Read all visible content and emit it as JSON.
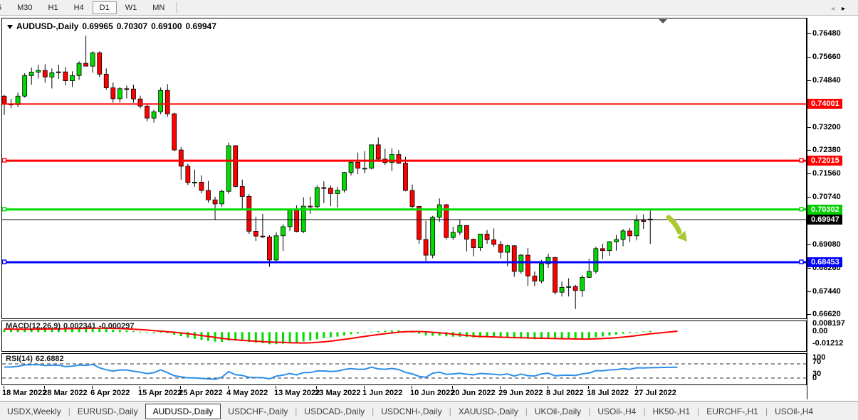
{
  "toolbar": {
    "buttons": [
      "5",
      "M30",
      "H1",
      "H4",
      "D1",
      "W1",
      "MN"
    ],
    "active": "D1"
  },
  "chart": {
    "symbol_period": "AUDUSD-,Daily",
    "open": "0.69965",
    "high": "0.70307",
    "low": "0.69100",
    "close": "0.69947"
  },
  "indicators": {
    "macd": {
      "label": "MACD(12,26,9)",
      "value_main": "0.002341",
      "value_signal": "-0.000297",
      "axis": [
        "0.008197",
        "0.00",
        "-0.01212"
      ]
    },
    "rsi": {
      "label": "RSI(14)",
      "value": "62.6882",
      "axis": [
        "100",
        "70",
        "30",
        "0"
      ]
    }
  },
  "price_axis": {
    "ticks": [
      "0.76480",
      "0.75660",
      "0.74840",
      "0.73200",
      "0.72380",
      "0.71560",
      "0.70740",
      "0.69080",
      "0.68260",
      "0.67440",
      "0.66620"
    ],
    "badges": [
      {
        "text": "0.74001",
        "bg": "#FF0000"
      },
      {
        "text": "0.72015",
        "bg": "#FF0000"
      },
      {
        "text": "0.70302",
        "bg": "#00CE00"
      },
      {
        "text": "0.69947",
        "bg": "#000000"
      },
      {
        "text": "0.68453",
        "bg": "#0000FF"
      }
    ]
  },
  "annotations": {
    "trend_arrow": {
      "direction": "down-right",
      "color": "#A9C832"
    }
  },
  "tabs": {
    "items": [
      {
        "label": "USDX,Weekly",
        "active": false
      },
      {
        "label": "EURUSD-,Daily",
        "active": false
      },
      {
        "label": "AUDUSD-,Daily",
        "active": true
      },
      {
        "label": "USDCHF-,Daily",
        "active": false
      },
      {
        "label": "USDCAD-,Daily",
        "active": false
      },
      {
        "label": "USDCNH-,Daily",
        "active": false
      },
      {
        "label": "XAUUSD-,Daily",
        "active": false
      },
      {
        "label": "UKOil-,Daily",
        "active": false
      },
      {
        "label": "USOil-,H4",
        "active": false
      },
      {
        "label": "HK50-,H1",
        "active": false
      },
      {
        "label": "EURCHF-,H1",
        "active": false
      },
      {
        "label": "USOil-,H4",
        "active": false
      }
    ],
    "scroll_left_icon": "◂",
    "scroll_right_icon": "▸"
  },
  "chart_data": {
    "type": "candlestick",
    "symbol": "AUDUSD-",
    "timeframe": "Daily",
    "ylim": [
      0.6662,
      0.7703
    ],
    "current_price": 0.69947,
    "horizontal_lines": [
      {
        "price": 0.74001,
        "color": "#FF0000",
        "width": 2,
        "end_markers": false
      },
      {
        "price": 0.72015,
        "color": "#FF0000",
        "width": 3,
        "end_markers": true
      },
      {
        "price": 0.70302,
        "color": "#00DC00",
        "width": 3,
        "end_markers": true
      },
      {
        "price": 0.68453,
        "color": "#0000FF",
        "width": 3,
        "end_markers": true
      }
    ],
    "date_labels": [
      {
        "label": "18 Mar 2022",
        "i": 0
      },
      {
        "label": "28 Mar 2022",
        "i": 6
      },
      {
        "label": "6 Apr 2022",
        "i": 13
      },
      {
        "label": "15 Apr 2022",
        "i": 20
      },
      {
        "label": "25 Apr 2022",
        "i": 26
      },
      {
        "label": "4 May 2022",
        "i": 33
      },
      {
        "label": "13 May 2022",
        "i": 40
      },
      {
        "label": "23 May 2022",
        "i": 46
      },
      {
        "label": "1 Jun 2022",
        "i": 53
      },
      {
        "label": "10 Jun 2022",
        "i": 60
      },
      {
        "label": "20 Jun 2022",
        "i": 66
      },
      {
        "label": "29 Jun 2022",
        "i": 73
      },
      {
        "label": "8 Jul 2022",
        "i": 80
      },
      {
        "label": "18 Jul 2022",
        "i": 86
      },
      {
        "label": "27 Jul 2022",
        "i": 93
      }
    ],
    "indicator_summary": [
      {
        "type": "MACD",
        "params": [
          12,
          26,
          9
        ],
        "last_main": 0.002341,
        "last_signal": -0.000297
      },
      {
        "type": "RSI",
        "params": [
          14
        ],
        "last": 62.6882,
        "levels": [
          70,
          30
        ]
      }
    ],
    "candles": [
      [
        0.7428,
        0.7432,
        0.7362,
        0.74
      ],
      [
        0.74,
        0.7418,
        0.7385,
        0.7398
      ],
      [
        0.7398,
        0.744,
        0.739,
        0.7428
      ],
      [
        0.7428,
        0.7508,
        0.7423,
        0.75
      ],
      [
        0.75,
        0.7528,
        0.7468,
        0.7512
      ],
      [
        0.7512,
        0.7537,
        0.749,
        0.7518
      ],
      [
        0.7518,
        0.754,
        0.7475,
        0.7495
      ],
      [
        0.7495,
        0.7525,
        0.7455,
        0.751
      ],
      [
        0.751,
        0.7538,
        0.7488,
        0.7513
      ],
      [
        0.7513,
        0.753,
        0.7465,
        0.7482
      ],
      [
        0.7482,
        0.7515,
        0.746,
        0.75
      ],
      [
        0.75,
        0.755,
        0.7485,
        0.7543
      ],
      [
        0.7543,
        0.764,
        0.7535,
        0.7533
      ],
      [
        0.7533,
        0.7585,
        0.751,
        0.758
      ],
      [
        0.758,
        0.7585,
        0.7495,
        0.7505
      ],
      [
        0.7505,
        0.7525,
        0.745,
        0.7457
      ],
      [
        0.7457,
        0.7475,
        0.7405,
        0.7419
      ],
      [
        0.7419,
        0.746,
        0.7405,
        0.7454
      ],
      [
        0.7454,
        0.7465,
        0.742,
        0.7453
      ],
      [
        0.7453,
        0.7468,
        0.7405,
        0.7418
      ],
      [
        0.7418,
        0.743,
        0.7385,
        0.7393
      ],
      [
        0.7393,
        0.74,
        0.734,
        0.7351
      ],
      [
        0.7351,
        0.738,
        0.7335,
        0.7373
      ],
      [
        0.7373,
        0.7458,
        0.7365,
        0.7448
      ],
      [
        0.7448,
        0.747,
        0.7355,
        0.7366
      ],
      [
        0.7366,
        0.737,
        0.7235,
        0.7239
      ],
      [
        0.7239,
        0.725,
        0.7135,
        0.7182
      ],
      [
        0.7182,
        0.719,
        0.7116,
        0.7125
      ],
      [
        0.7125,
        0.717,
        0.711,
        0.7126
      ],
      [
        0.7126,
        0.715,
        0.7087,
        0.7097
      ],
      [
        0.7097,
        0.713,
        0.7055,
        0.7064
      ],
      [
        0.7064,
        0.7075,
        0.6993,
        0.705
      ],
      [
        0.705,
        0.71,
        0.704,
        0.7094
      ],
      [
        0.7094,
        0.7265,
        0.7085,
        0.7254
      ],
      [
        0.7254,
        0.7256,
        0.7108,
        0.7111
      ],
      [
        0.7111,
        0.7135,
        0.7029,
        0.7076
      ],
      [
        0.7076,
        0.7084,
        0.6945,
        0.6954
      ],
      [
        0.6954,
        0.7005,
        0.692,
        0.6937
      ],
      [
        0.6937,
        0.7015,
        0.693,
        0.6934
      ],
      [
        0.6934,
        0.694,
        0.6829,
        0.6853
      ],
      [
        0.6853,
        0.695,
        0.6845,
        0.6938
      ],
      [
        0.6938,
        0.6979,
        0.6885,
        0.697
      ],
      [
        0.697,
        0.7033,
        0.6955,
        0.7028
      ],
      [
        0.7028,
        0.7045,
        0.695,
        0.6953
      ],
      [
        0.6953,
        0.7073,
        0.6947,
        0.7042
      ],
      [
        0.7042,
        0.7075,
        0.7015,
        0.704
      ],
      [
        0.704,
        0.7115,
        0.7035,
        0.7107
      ],
      [
        0.7107,
        0.7129,
        0.7053,
        0.7105
      ],
      [
        0.7105,
        0.7115,
        0.7042,
        0.7086
      ],
      [
        0.7086,
        0.711,
        0.7037,
        0.7098
      ],
      [
        0.7098,
        0.7162,
        0.709,
        0.716
      ],
      [
        0.716,
        0.7205,
        0.715,
        0.7196
      ],
      [
        0.7196,
        0.723,
        0.7154,
        0.7175
      ],
      [
        0.7175,
        0.7235,
        0.7157,
        0.7175
      ],
      [
        0.7175,
        0.7258,
        0.7171,
        0.7257
      ],
      [
        0.7257,
        0.7283,
        0.72,
        0.7207
      ],
      [
        0.7207,
        0.7243,
        0.7186,
        0.7195
      ],
      [
        0.7195,
        0.7245,
        0.7165,
        0.7223
      ],
      [
        0.7223,
        0.7239,
        0.719,
        0.7193
      ],
      [
        0.7193,
        0.7215,
        0.7094,
        0.7097
      ],
      [
        0.7097,
        0.7118,
        0.7033,
        0.7041
      ],
      [
        0.7041,
        0.7043,
        0.691,
        0.6925
      ],
      [
        0.6925,
        0.6991,
        0.685,
        0.687
      ],
      [
        0.687,
        0.7008,
        0.6859,
        0.7003
      ],
      [
        0.7003,
        0.7069,
        0.6987,
        0.7047
      ],
      [
        0.7047,
        0.705,
        0.6925,
        0.6932
      ],
      [
        0.6932,
        0.6969,
        0.6923,
        0.695
      ],
      [
        0.695,
        0.6996,
        0.694,
        0.6974
      ],
      [
        0.6974,
        0.6975,
        0.6883,
        0.6926
      ],
      [
        0.6926,
        0.6928,
        0.6866,
        0.6896
      ],
      [
        0.6896,
        0.6945,
        0.6885,
        0.6944
      ],
      [
        0.6944,
        0.6958,
        0.691,
        0.6924
      ],
      [
        0.6924,
        0.6964,
        0.6898,
        0.6908
      ],
      [
        0.6908,
        0.692,
        0.6858,
        0.688
      ],
      [
        0.688,
        0.6907,
        0.6831,
        0.6903
      ],
      [
        0.6903,
        0.6905,
        0.6794,
        0.6813
      ],
      [
        0.6813,
        0.6874,
        0.6805,
        0.687
      ],
      [
        0.687,
        0.6895,
        0.6762,
        0.6797
      ],
      [
        0.6797,
        0.6813,
        0.6761,
        0.6779
      ],
      [
        0.6779,
        0.6853,
        0.6772,
        0.684
      ],
      [
        0.684,
        0.6875,
        0.6825,
        0.6862
      ],
      [
        0.6862,
        0.6864,
        0.6732,
        0.674
      ],
      [
        0.674,
        0.6777,
        0.6725,
        0.6757
      ],
      [
        0.6757,
        0.6789,
        0.6725,
        0.676
      ],
      [
        0.676,
        0.6766,
        0.6681,
        0.6746
      ],
      [
        0.6746,
        0.68,
        0.6724,
        0.6792
      ],
      [
        0.6792,
        0.6857,
        0.679,
        0.6813
      ],
      [
        0.6813,
        0.69,
        0.6805,
        0.6893
      ],
      [
        0.6893,
        0.691,
        0.6856,
        0.6886
      ],
      [
        0.6886,
        0.692,
        0.6868,
        0.6917
      ],
      [
        0.6917,
        0.6941,
        0.6886,
        0.6925
      ],
      [
        0.6925,
        0.6962,
        0.6901,
        0.6955
      ],
      [
        0.6955,
        0.6965,
        0.6916,
        0.6938
      ],
      [
        0.6938,
        0.7011,
        0.6922,
        0.6992
      ],
      [
        0.6992,
        0.7013,
        0.6962,
        0.6988
      ],
      [
        0.69965,
        0.70307,
        0.691,
        0.69947
      ]
    ]
  }
}
